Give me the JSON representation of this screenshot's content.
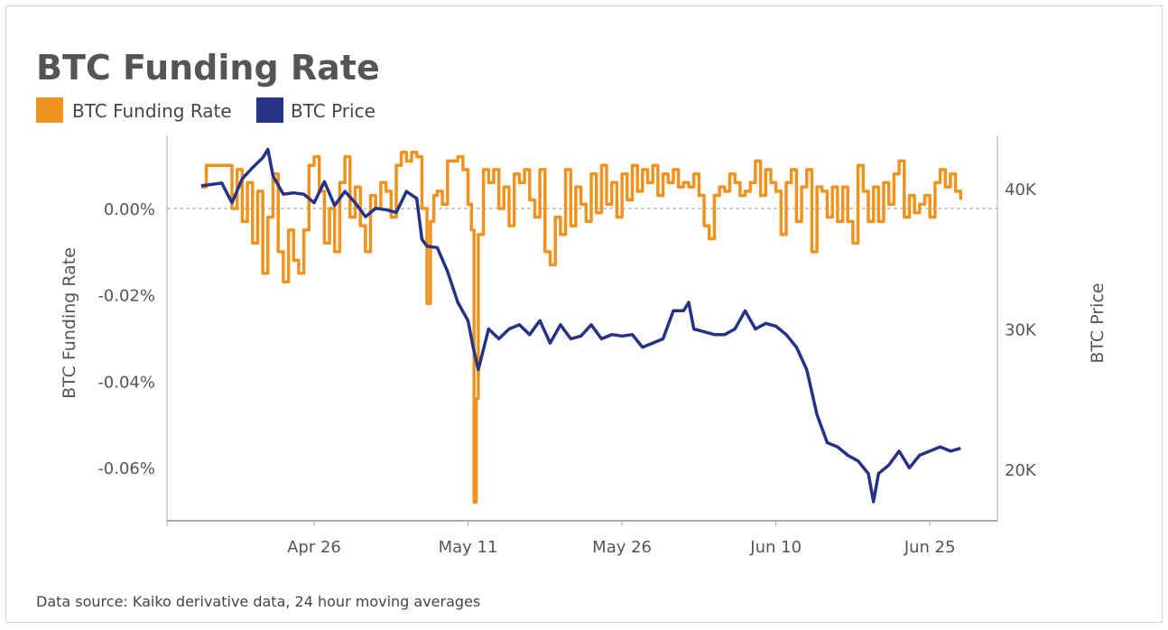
{
  "chart_data": {
    "type": "line",
    "title": "BTC Funding Rate",
    "legend": {
      "placement": "top-left",
      "entries": [
        "BTC Funding Rate",
        "BTC Price"
      ]
    },
    "source": "Data source: Kaiko derivative data, 24 hour moving averages",
    "x_ticks": [
      "Apr 26",
      "May 11",
      "May 26",
      "Jun 10",
      "Jun 25"
    ],
    "x_range": [
      "04-15 00:00",
      "06-28 00:00"
    ],
    "y_left": {
      "label": "BTC Funding Rate",
      "unit": "%",
      "ticks": [
        "0.00%",
        "-0.02%",
        "-0.04%",
        "-0.06%"
      ],
      "tick_values": [
        0,
        -0.02,
        -0.04,
        -0.06
      ],
      "range": [
        -0.073,
        0.017
      ]
    },
    "y_right": {
      "label": "BTC Price",
      "unit": "USD thousands",
      "ticks": [
        "40K",
        "30K",
        "20K"
      ],
      "tick_values": [
        40,
        30,
        20
      ],
      "range": [
        16.5,
        43.5
      ]
    },
    "zero_line": "dashed",
    "grid": false,
    "colors": {
      "funding": "#F0921E",
      "price": "#253385",
      "axis": "#aaaaaa",
      "text": "#555555"
    },
    "series": [
      {
        "name": "BTC Funding Rate",
        "axis": "left",
        "points": [
          [
            "04-15 00:00",
            0.005
          ],
          [
            "04-15 12:00",
            0.01
          ],
          [
            "04-16 00:00",
            0.01
          ],
          [
            "04-17 00:00",
            0.01
          ],
          [
            "04-18 00:00",
            0.0
          ],
          [
            "04-18 12:00",
            0.009
          ],
          [
            "04-19 00:00",
            -0.003
          ],
          [
            "04-19 12:00",
            0.006
          ],
          [
            "04-20 00:00",
            -0.008
          ],
          [
            "04-20 12:00",
            0.004
          ],
          [
            "04-21 00:00",
            -0.015
          ],
          [
            "04-21 12:00",
            -0.002
          ],
          [
            "04-22 00:00",
            0.008
          ],
          [
            "04-22 12:00",
            -0.01
          ],
          [
            "04-23 00:00",
            -0.017
          ],
          [
            "04-23 12:00",
            -0.005
          ],
          [
            "04-24 00:00",
            -0.012
          ],
          [
            "04-24 12:00",
            -0.015
          ],
          [
            "04-25 00:00",
            -0.005
          ],
          [
            "04-25 12:00",
            0.01
          ],
          [
            "04-26 00:00",
            0.012
          ],
          [
            "04-26 12:00",
            0.004
          ],
          [
            "04-27 00:00",
            -0.008
          ],
          [
            "04-27 12:00",
            0.0
          ],
          [
            "04-28 00:00",
            -0.01
          ],
          [
            "04-28 12:00",
            0.006
          ],
          [
            "04-29 00:00",
            0.012
          ],
          [
            "04-29 12:00",
            -0.002
          ],
          [
            "04-30 00:00",
            0.005
          ],
          [
            "04-30 12:00",
            -0.004
          ],
          [
            "05-01 00:00",
            -0.01
          ],
          [
            "05-01 12:00",
            0.003
          ],
          [
            "05-02 00:00",
            0.0
          ],
          [
            "05-02 12:00",
            0.006
          ],
          [
            "05-03 00:00",
            0.004
          ],
          [
            "05-03 12:00",
            -0.002
          ],
          [
            "05-04 00:00",
            0.01
          ],
          [
            "05-04 12:00",
            0.013
          ],
          [
            "05-05 00:00",
            0.011
          ],
          [
            "05-05 12:00",
            0.013
          ],
          [
            "05-06 00:00",
            0.012
          ],
          [
            "05-06 12:00",
            0.0
          ],
          [
            "05-07 00:00",
            -0.022
          ],
          [
            "05-07 08:00",
            -0.003
          ],
          [
            "05-07 16:00",
            0.003
          ],
          [
            "05-08 00:00",
            0.004
          ],
          [
            "05-08 12:00",
            0.001
          ],
          [
            "05-09 00:00",
            0.011
          ],
          [
            "05-09 12:00",
            0.011
          ],
          [
            "05-10 00:00",
            0.012
          ],
          [
            "05-10 12:00",
            0.009
          ],
          [
            "05-11 00:00",
            0.001
          ],
          [
            "05-11 08:00",
            -0.005
          ],
          [
            "05-11 14:00",
            -0.068
          ],
          [
            "05-11 19:00",
            -0.044
          ],
          [
            "05-12 00:00",
            -0.006
          ],
          [
            "05-12 12:00",
            0.009
          ],
          [
            "05-13 00:00",
            0.006
          ],
          [
            "05-13 12:00",
            0.009
          ],
          [
            "05-14 00:00",
            0.0
          ],
          [
            "05-14 12:00",
            0.005
          ],
          [
            "05-15 00:00",
            -0.004
          ],
          [
            "05-15 12:00",
            0.008
          ],
          [
            "05-16 00:00",
            0.006
          ],
          [
            "05-16 12:00",
            0.009
          ],
          [
            "05-17 00:00",
            0.002
          ],
          [
            "05-17 12:00",
            -0.002
          ],
          [
            "05-18 00:00",
            0.009
          ],
          [
            "05-18 12:00",
            -0.01
          ],
          [
            "05-19 00:00",
            -0.013
          ],
          [
            "05-19 12:00",
            -0.002
          ],
          [
            "05-20 00:00",
            -0.006
          ],
          [
            "05-20 12:00",
            0.009
          ],
          [
            "05-21 00:00",
            -0.004
          ],
          [
            "05-21 12:00",
            0.005
          ],
          [
            "05-22 00:00",
            0.001
          ],
          [
            "05-22 12:00",
            -0.003
          ],
          [
            "05-23 00:00",
            0.008
          ],
          [
            "05-23 12:00",
            -0.001
          ],
          [
            "05-24 00:00",
            0.01
          ],
          [
            "05-24 12:00",
            0.001
          ],
          [
            "05-25 00:00",
            0.006
          ],
          [
            "05-25 12:00",
            -0.002
          ],
          [
            "05-26 00:00",
            0.008
          ],
          [
            "05-26 12:00",
            0.002
          ],
          [
            "05-27 00:00",
            0.01
          ],
          [
            "05-27 12:00",
            0.004
          ],
          [
            "05-28 00:00",
            0.009
          ],
          [
            "05-28 12:00",
            0.006
          ],
          [
            "05-29 00:00",
            0.01
          ],
          [
            "05-29 12:00",
            0.003
          ],
          [
            "05-30 00:00",
            0.008
          ],
          [
            "05-30 12:00",
            0.006
          ],
          [
            "05-31 00:00",
            0.009
          ],
          [
            "05-31 12:00",
            0.005
          ],
          [
            "06-01 00:00",
            0.006
          ],
          [
            "06-01 12:00",
            0.005
          ],
          [
            "06-02 00:00",
            0.008
          ],
          [
            "06-02 12:00",
            0.003
          ],
          [
            "06-03 00:00",
            -0.004
          ],
          [
            "06-03 12:00",
            -0.007
          ],
          [
            "06-04 00:00",
            0.003
          ],
          [
            "06-04 12:00",
            0.005
          ],
          [
            "06-05 00:00",
            0.004
          ],
          [
            "06-05 12:00",
            0.008
          ],
          [
            "06-06 00:00",
            0.006
          ],
          [
            "06-06 12:00",
            0.003
          ],
          [
            "06-07 00:00",
            0.004
          ],
          [
            "06-07 12:00",
            0.006
          ],
          [
            "06-08 00:00",
            0.011
          ],
          [
            "06-08 12:00",
            0.003
          ],
          [
            "06-09 00:00",
            0.009
          ],
          [
            "06-09 12:00",
            0.006
          ],
          [
            "06-10 00:00",
            0.004
          ],
          [
            "06-10 12:00",
            -0.006
          ],
          [
            "06-11 00:00",
            0.006
          ],
          [
            "06-11 12:00",
            0.009
          ],
          [
            "06-12 00:00",
            -0.003
          ],
          [
            "06-12 12:00",
            0.005
          ],
          [
            "06-13 00:00",
            0.009
          ],
          [
            "06-13 12:00",
            -0.01
          ],
          [
            "06-14 00:00",
            0.005
          ],
          [
            "06-14 12:00",
            0.004
          ],
          [
            "06-15 00:00",
            -0.002
          ],
          [
            "06-15 12:00",
            0.005
          ],
          [
            "06-16 00:00",
            -0.003
          ],
          [
            "06-16 12:00",
            0.005
          ],
          [
            "06-17 00:00",
            -0.003
          ],
          [
            "06-17 12:00",
            -0.008
          ],
          [
            "06-18 00:00",
            0.01
          ],
          [
            "06-18 12:00",
            0.004
          ],
          [
            "06-19 00:00",
            -0.003
          ],
          [
            "06-19 12:00",
            0.005
          ],
          [
            "06-20 00:00",
            -0.003
          ],
          [
            "06-20 12:00",
            0.006
          ],
          [
            "06-21 00:00",
            0.001
          ],
          [
            "06-21 12:00",
            0.008
          ],
          [
            "06-22 00:00",
            0.011
          ],
          [
            "06-22 12:00",
            -0.002
          ],
          [
            "06-23 00:00",
            0.003
          ],
          [
            "06-23 12:00",
            -0.001
          ],
          [
            "06-24 00:00",
            0.001
          ],
          [
            "06-24 12:00",
            0.003
          ],
          [
            "06-25 00:00",
            -0.002
          ],
          [
            "06-25 12:00",
            0.006
          ],
          [
            "06-26 00:00",
            0.009
          ],
          [
            "06-26 12:00",
            0.005
          ],
          [
            "06-27 00:00",
            0.008
          ],
          [
            "06-27 12:00",
            0.004
          ],
          [
            "06-28 00:00",
            0.002
          ]
        ]
      },
      {
        "name": "BTC Price",
        "axis": "right",
        "points": [
          [
            "04-15 00:00",
            40.2
          ],
          [
            "04-17 00:00",
            40.4
          ],
          [
            "04-18 00:00",
            39.0
          ],
          [
            "04-19 00:00",
            40.7
          ],
          [
            "04-20 00:00",
            41.5
          ],
          [
            "04-21 00:00",
            42.2
          ],
          [
            "04-21 12:00",
            42.8
          ],
          [
            "04-22 00:00",
            40.9
          ],
          [
            "04-23 00:00",
            39.6
          ],
          [
            "04-24 00:00",
            39.7
          ],
          [
            "04-25 00:00",
            39.6
          ],
          [
            "04-26 00:00",
            39.0
          ],
          [
            "04-27 00:00",
            40.5
          ],
          [
            "04-28 00:00",
            38.8
          ],
          [
            "04-29 00:00",
            39.8
          ],
          [
            "04-30 00:00",
            39.0
          ],
          [
            "05-01 00:00",
            38.0
          ],
          [
            "05-02 00:00",
            38.6
          ],
          [
            "05-03 00:00",
            38.5
          ],
          [
            "05-04 00:00",
            38.3
          ],
          [
            "05-05 00:00",
            39.8
          ],
          [
            "05-06 00:00",
            39.3
          ],
          [
            "05-06 12:00",
            36.4
          ],
          [
            "05-07 00:00",
            35.9
          ],
          [
            "05-08 00:00",
            35.8
          ],
          [
            "05-09 00:00",
            34.1
          ],
          [
            "05-10 00:00",
            31.9
          ],
          [
            "05-11 00:00",
            30.6
          ],
          [
            "05-11 12:00",
            28.7
          ],
          [
            "05-12 00:00",
            27.1
          ],
          [
            "05-13 00:00",
            30.0
          ],
          [
            "05-14 00:00",
            29.3
          ],
          [
            "05-15 00:00",
            30.0
          ],
          [
            "05-16 00:00",
            30.3
          ],
          [
            "05-17 00:00",
            29.6
          ],
          [
            "05-18 00:00",
            30.6
          ],
          [
            "05-19 00:00",
            29.0
          ],
          [
            "05-20 00:00",
            30.3
          ],
          [
            "05-21 00:00",
            29.3
          ],
          [
            "05-22 00:00",
            29.5
          ],
          [
            "05-23 00:00",
            30.3
          ],
          [
            "05-24 00:00",
            29.3
          ],
          [
            "05-25 00:00",
            29.6
          ],
          [
            "05-26 00:00",
            29.5
          ],
          [
            "05-27 00:00",
            29.6
          ],
          [
            "05-28 00:00",
            28.7
          ],
          [
            "05-29 00:00",
            29.0
          ],
          [
            "05-30 00:00",
            29.3
          ],
          [
            "05-31 00:00",
            31.3
          ],
          [
            "06-01 00:00",
            31.3
          ],
          [
            "06-01 12:00",
            31.9
          ],
          [
            "06-02 00:00",
            30.0
          ],
          [
            "06-03 00:00",
            29.8
          ],
          [
            "06-04 00:00",
            29.6
          ],
          [
            "06-05 00:00",
            29.6
          ],
          [
            "06-06 00:00",
            30.0
          ],
          [
            "06-07 00:00",
            31.3
          ],
          [
            "06-08 00:00",
            30.0
          ],
          [
            "06-09 00:00",
            30.4
          ],
          [
            "06-10 00:00",
            30.2
          ],
          [
            "06-11 00:00",
            29.6
          ],
          [
            "06-12 00:00",
            28.7
          ],
          [
            "06-13 00:00",
            27.1
          ],
          [
            "06-14 00:00",
            23.9
          ],
          [
            "06-15 00:00",
            21.9
          ],
          [
            "06-16 00:00",
            21.6
          ],
          [
            "06-17 00:00",
            21.0
          ],
          [
            "06-18 00:00",
            20.6
          ],
          [
            "06-19 00:00",
            19.7
          ],
          [
            "06-19 12:00",
            17.7
          ],
          [
            "06-20 00:00",
            19.7
          ],
          [
            "06-21 00:00",
            20.3
          ],
          [
            "06-22 00:00",
            21.3
          ],
          [
            "06-23 00:00",
            20.1
          ],
          [
            "06-24 00:00",
            21.0
          ],
          [
            "06-25 00:00",
            21.3
          ],
          [
            "06-26 00:00",
            21.6
          ],
          [
            "06-27 00:00",
            21.3
          ],
          [
            "06-28 00:00",
            21.5
          ]
        ]
      }
    ]
  }
}
